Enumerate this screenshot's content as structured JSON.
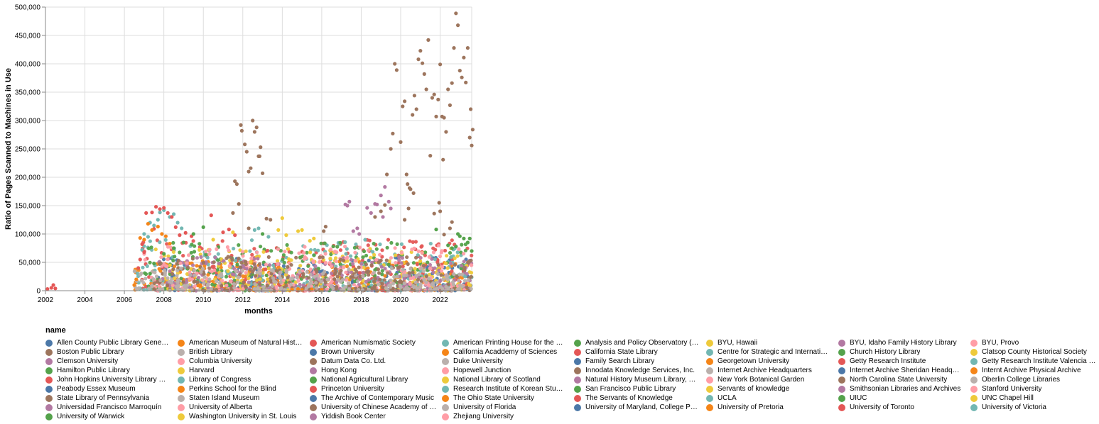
{
  "chart_data": {
    "type": "scatter",
    "xlabel": "months",
    "ylabel": "Ratio of Pages Scanned to Machines in Use",
    "xlim": [
      2002,
      2023.6
    ],
    "ylim": [
      0,
      500000
    ],
    "x_ticks": [
      "2002",
      "2004",
      "2006",
      "2008",
      "2010",
      "2012",
      "2014",
      "2016",
      "2018",
      "2020",
      "2022"
    ],
    "y_ticks": [
      "0",
      "50,000",
      "100,000",
      "150,000",
      "200,000",
      "250,000",
      "300,000",
      "350,000",
      "400,000",
      "450,000",
      "500,000"
    ],
    "grid": true,
    "legend_title": "name",
    "legend_position": "bottom",
    "legend": [
      {
        "name": "Allen County Public Library Gene…",
        "color": "#4c78a8"
      },
      {
        "name": "American Museum of Natural Hist…",
        "color": "#f58518"
      },
      {
        "name": "American Numismatic Society",
        "color": "#e45756"
      },
      {
        "name": "American Printing House for the …",
        "color": "#72b7b2"
      },
      {
        "name": "Analysis and Policy Observatory (…",
        "color": "#54a24b"
      },
      {
        "name": "BYU, Hawaii",
        "color": "#eeca3b"
      },
      {
        "name": "BYU, Idaho Family History Library",
        "color": "#b279a2"
      },
      {
        "name": "BYU, Provo",
        "color": "#ff9da6"
      },
      {
        "name": "Boston Public Library",
        "color": "#9d755d"
      },
      {
        "name": "British Library",
        "color": "#bab0ac"
      },
      {
        "name": "Brown University",
        "color": "#4c78a8"
      },
      {
        "name": "California Acaddemy of Sciences",
        "color": "#f58518"
      },
      {
        "name": "California State Library",
        "color": "#e45756"
      },
      {
        "name": "Centre for Strategic and Internati…",
        "color": "#72b7b2"
      },
      {
        "name": "Church History Library",
        "color": "#54a24b"
      },
      {
        "name": "Clatsop County Historical Society",
        "color": "#eeca3b"
      },
      {
        "name": "Clemson University",
        "color": "#b279a2"
      },
      {
        "name": "Columbia University",
        "color": "#ff9da6"
      },
      {
        "name": "Datum Data Co. Ltd.",
        "color": "#9d755d"
      },
      {
        "name": "Duke University",
        "color": "#bab0ac"
      },
      {
        "name": "Family Search Library",
        "color": "#4c78a8"
      },
      {
        "name": "Georgetown University",
        "color": "#f58518"
      },
      {
        "name": "Getty Research Institute",
        "color": "#e45756"
      },
      {
        "name": "Getty Research Institute Valencia …",
        "color": "#72b7b2"
      },
      {
        "name": "Hamilton Public Library",
        "color": "#54a24b"
      },
      {
        "name": "Harvard",
        "color": "#eeca3b"
      },
      {
        "name": "Hong Kong",
        "color": "#b279a2"
      },
      {
        "name": "Hopewell Junction",
        "color": "#ff9da6"
      },
      {
        "name": "Innodata Knowledge Services, Inc.",
        "color": "#9d755d"
      },
      {
        "name": "Internet Archive Headquarters",
        "color": "#bab0ac"
      },
      {
        "name": "Internet Archive Sheridan Headq…",
        "color": "#4c78a8"
      },
      {
        "name": "Internt Archive Physical Archive",
        "color": "#f58518"
      },
      {
        "name": "John Hopkins University Library …",
        "color": "#e45756"
      },
      {
        "name": "Library of Congress",
        "color": "#72b7b2"
      },
      {
        "name": "National Agricultural Library",
        "color": "#54a24b"
      },
      {
        "name": "National Library of Scotland",
        "color": "#eeca3b"
      },
      {
        "name": "Natural History Museum Library, …",
        "color": "#b279a2"
      },
      {
        "name": "New York Botanical Garden",
        "color": "#ff9da6"
      },
      {
        "name": "North Carolina State University",
        "color": "#9d755d"
      },
      {
        "name": "Oberlin College Libraries",
        "color": "#bab0ac"
      },
      {
        "name": "Peabody Essex Museum",
        "color": "#4c78a8"
      },
      {
        "name": "Perkins School for the Blind",
        "color": "#f58518"
      },
      {
        "name": "Princeton University",
        "color": "#e45756"
      },
      {
        "name": "Research Institute of Korean Stu…",
        "color": "#72b7b2"
      },
      {
        "name": "San Francisco Public Library",
        "color": "#54a24b"
      },
      {
        "name": "Servants of knowledge",
        "color": "#eeca3b"
      },
      {
        "name": "Smithsonian Libraries and Archives",
        "color": "#b279a2"
      },
      {
        "name": "Stanford University",
        "color": "#ff9da6"
      },
      {
        "name": "State Library of Pennsylvania",
        "color": "#9d755d"
      },
      {
        "name": "Staten Island Museum",
        "color": "#bab0ac"
      },
      {
        "name": "The Archive of Contemporary Music",
        "color": "#4c78a8"
      },
      {
        "name": "The Ohio State University",
        "color": "#f58518"
      },
      {
        "name": "The Servants of Knowledge",
        "color": "#e45756"
      },
      {
        "name": "UCLA",
        "color": "#72b7b2"
      },
      {
        "name": "UIUC",
        "color": "#54a24b"
      },
      {
        "name": "UNC Chapel Hill",
        "color": "#eeca3b"
      },
      {
        "name": "Universidad Francisco Marroquín",
        "color": "#b279a2"
      },
      {
        "name": "University of Alberta",
        "color": "#ff9da6"
      },
      {
        "name": "University of Chinese Academy of …",
        "color": "#9d755d"
      },
      {
        "name": "University of Florida",
        "color": "#bab0ac"
      },
      {
        "name": "University of Maryland, College P…",
        "color": "#4c78a8"
      },
      {
        "name": "University of Pretoria",
        "color": "#f58518"
      },
      {
        "name": "University of Toronto",
        "color": "#e45756"
      },
      {
        "name": "University of Victoria",
        "color": "#72b7b2"
      },
      {
        "name": "University of Warwick",
        "color": "#54a24b"
      },
      {
        "name": "Washington University in St. Louis",
        "color": "#eeca3b"
      },
      {
        "name": "Yiddish Book Center",
        "color": "#b279a2"
      },
      {
        "name": "Zhejiang University",
        "color": "#ff9da6"
      }
    ],
    "series": [
      {
        "name": "Boston Public Library",
        "color": "#9d755d",
        "points": [
          [
            2011.6,
            193000
          ],
          [
            2011.7,
            188000
          ],
          [
            2011.8,
            153000
          ],
          [
            2011.9,
            292000
          ],
          [
            2011.95,
            282000
          ],
          [
            2012.1,
            258000
          ],
          [
            2012.2,
            245000
          ],
          [
            2012.3,
            210000
          ],
          [
            2012.4,
            216000
          ],
          [
            2012.5,
            300000
          ],
          [
            2012.6,
            280000
          ],
          [
            2012.7,
            288000
          ],
          [
            2012.8,
            237000
          ],
          [
            2012.9,
            253000
          ],
          [
            2013.0,
            207000
          ],
          [
            2012.85,
            237000
          ],
          [
            2011.5,
            137000
          ],
          [
            2012.3,
            110000
          ],
          [
            2013.2,
            127000
          ],
          [
            2013.4,
            125000
          ],
          [
            2019.3,
            205000
          ],
          [
            2019.5,
            250000
          ],
          [
            2019.6,
            277000
          ],
          [
            2019.7,
            400000
          ],
          [
            2019.8,
            389000
          ],
          [
            2020.0,
            262000
          ],
          [
            2020.1,
            325000
          ],
          [
            2020.2,
            334000
          ],
          [
            2020.3,
            205000
          ],
          [
            2020.35,
            188000
          ],
          [
            2020.45,
            181000
          ],
          [
            2020.5,
            179000
          ],
          [
            2020.6,
            310000
          ],
          [
            2020.65,
            172000
          ],
          [
            2020.7,
            344000
          ],
          [
            2020.8,
            320000
          ],
          [
            2020.9,
            408000
          ],
          [
            2021.0,
            423000
          ],
          [
            2021.1,
            401000
          ],
          [
            2021.2,
            382000
          ],
          [
            2021.3,
            355000
          ],
          [
            2021.4,
            442000
          ],
          [
            2021.5,
            238000
          ],
          [
            2021.6,
            340000
          ],
          [
            2021.7,
            346000
          ],
          [
            2021.8,
            307000
          ],
          [
            2021.9,
            337000
          ],
          [
            2022.0,
            399000
          ],
          [
            2022.1,
            307000
          ],
          [
            2022.15,
            231000
          ],
          [
            2022.2,
            305000
          ],
          [
            2022.3,
            280000
          ],
          [
            2022.4,
            355000
          ],
          [
            2022.5,
            327000
          ],
          [
            2022.6,
            366000
          ],
          [
            2022.7,
            428000
          ],
          [
            2022.8,
            489000
          ],
          [
            2022.9,
            468000
          ],
          [
            2023.0,
            388000
          ],
          [
            2023.1,
            376000
          ],
          [
            2023.2,
            411000
          ],
          [
            2023.3,
            367000
          ],
          [
            2023.4,
            428000
          ],
          [
            2023.5,
            270000
          ],
          [
            2023.55,
            320000
          ],
          [
            2023.6,
            256000
          ],
          [
            2023.65,
            284000
          ],
          [
            2020.4,
            145000
          ],
          [
            2020.2,
            125000
          ],
          [
            2021.95,
            155000
          ],
          [
            2022.0,
            140000
          ],
          [
            2021.7,
            136000
          ],
          [
            2022.2,
            99000
          ],
          [
            2022.6,
            121000
          ],
          [
            2022.5,
            110000
          ],
          [
            2019.2,
            151000
          ],
          [
            2019.0,
            140000
          ],
          [
            2018.7,
            130000
          ],
          [
            2016.2,
            113000
          ],
          [
            2016.1,
            105000
          ]
        ]
      },
      {
        "name": "Smithsonian Libraries and Archives",
        "color": "#b279a2",
        "points": [
          [
            2017.2,
            152000
          ],
          [
            2017.3,
            150000
          ],
          [
            2017.4,
            157000
          ],
          [
            2017.6,
            105000
          ],
          [
            2017.8,
            110000
          ],
          [
            2018.3,
            146000
          ],
          [
            2018.5,
            137000
          ],
          [
            2018.7,
            153000
          ],
          [
            2018.8,
            152000
          ],
          [
            2019.0,
            168000
          ],
          [
            2019.2,
            183000
          ],
          [
            2019.4,
            157000
          ],
          [
            2019.5,
            145000
          ],
          [
            2019.1,
            130000
          ],
          [
            2017.9,
            100000
          ]
        ]
      },
      {
        "name": "Library of Congress",
        "color": "#72b7b2",
        "points": [
          [
            2007.0,
            100000
          ],
          [
            2007.3,
            120000
          ],
          [
            2007.5,
            115000
          ],
          [
            2007.7,
            125000
          ],
          [
            2007.8,
            138000
          ],
          [
            2008.0,
            142000
          ],
          [
            2008.3,
            130000
          ],
          [
            2008.5,
            135000
          ],
          [
            2008.7,
            120000
          ],
          [
            2007.2,
            95000
          ],
          [
            2006.9,
            72000
          ],
          [
            2008.9,
            110000
          ],
          [
            2012.6,
            107000
          ],
          [
            2012.8,
            110000
          ],
          [
            2013.3,
            95000
          ]
        ]
      },
      {
        "name": "American Numismatic Society",
        "color": "#e45756",
        "points": [
          [
            2006.7,
            40000
          ],
          [
            2006.8,
            55000
          ],
          [
            2007.0,
            68000
          ],
          [
            2007.1,
            137000
          ],
          [
            2007.4,
            138000
          ],
          [
            2007.6,
            148000
          ],
          [
            2007.8,
            144000
          ],
          [
            2008.0,
            146000
          ],
          [
            2008.2,
            137000
          ],
          [
            2008.4,
            130000
          ],
          [
            2008.6,
            112000
          ],
          [
            2008.8,
            98000
          ],
          [
            2009.1,
            102000
          ],
          [
            2009.4,
            96000
          ],
          [
            2010.4,
            133000
          ],
          [
            2011.0,
            103000
          ],
          [
            2011.3,
            108000
          ],
          [
            2011.6,
            98000
          ],
          [
            2006.9,
            82000
          ],
          [
            2007.5,
            109000
          ],
          [
            2002.1,
            3000
          ],
          [
            2002.3,
            5000
          ],
          [
            2002.4,
            10000
          ],
          [
            2002.5,
            4000
          ]
        ]
      },
      {
        "name": "American Museum of Natural Hist…",
        "color": "#f58518",
        "points": [
          [
            2006.5,
            10000
          ],
          [
            2006.6,
            20000
          ],
          [
            2006.8,
            93000
          ],
          [
            2007.0,
            90000
          ],
          [
            2007.2,
            118000
          ],
          [
            2007.4,
            107000
          ],
          [
            2007.7,
            113000
          ],
          [
            2007.9,
            100000
          ],
          [
            2008.1,
            96000
          ],
          [
            2008.3,
            83000
          ],
          [
            2014.5,
            2000
          ],
          [
            2015.0,
            1500
          ],
          [
            2015.5,
            2500
          ],
          [
            2016.0,
            1800
          ],
          [
            2014.8,
            3000
          ]
        ]
      },
      {
        "name": "Hamilton Public Library",
        "color": "#54a24b",
        "points": [
          [
            2007.3,
            30000
          ],
          [
            2007.5,
            48000
          ],
          [
            2008.0,
            65000
          ],
          [
            2008.5,
            75000
          ],
          [
            2009.0,
            85000
          ],
          [
            2009.5,
            100000
          ],
          [
            2010.0,
            112000
          ],
          [
            2013.0,
            100000
          ],
          [
            2021.8,
            108000
          ],
          [
            2022.8,
            78000
          ],
          [
            2022.9,
            100000
          ],
          [
            2023.0,
            96000
          ],
          [
            2023.2,
            92000
          ],
          [
            2023.4,
            85000
          ],
          [
            2023.5,
            92000
          ],
          [
            2023.6,
            70000
          ],
          [
            2022.6,
            75000
          ],
          [
            2022.4,
            80000
          ]
        ]
      },
      {
        "name": "Harvard",
        "color": "#eeca3b",
        "points": [
          [
            2013.8,
            107000
          ],
          [
            2014.0,
            128000
          ],
          [
            2014.2,
            98000
          ],
          [
            2014.8,
            105000
          ],
          [
            2015.0,
            107000
          ],
          [
            2015.4,
            88000
          ],
          [
            2015.6,
            92000
          ],
          [
            2011.5,
            103000
          ],
          [
            2010.5,
            90000
          ],
          [
            2009.8,
            72000
          ]
        ]
      }
    ],
    "cluster_bands": [
      {
        "color": "#4c78a8",
        "x0": 2007.5,
        "x1": 2023.6,
        "ymax": 60000
      },
      {
        "color": "#f58518",
        "x0": 2006.5,
        "x1": 2023.6,
        "ymax": 55000
      },
      {
        "color": "#e45756",
        "x0": 2006.6,
        "x1": 2023.6,
        "ymax": 90000
      },
      {
        "color": "#72b7b2",
        "x0": 2006.6,
        "x1": 2023.6,
        "ymax": 90000
      },
      {
        "color": "#54a24b",
        "x0": 2007.0,
        "x1": 2023.6,
        "ymax": 85000
      },
      {
        "color": "#eeca3b",
        "x0": 2007.5,
        "x1": 2023.6,
        "ymax": 75000
      },
      {
        "color": "#b279a2",
        "x0": 2007.5,
        "x1": 2023.6,
        "ymax": 60000
      },
      {
        "color": "#ff9da6",
        "x0": 2007.0,
        "x1": 2023.6,
        "ymax": 80000
      },
      {
        "color": "#9d755d",
        "x0": 2007.5,
        "x1": 2023.6,
        "ymax": 60000
      },
      {
        "color": "#bab0ac",
        "x0": 2006.5,
        "x1": 2023.6,
        "ymax": 40000
      }
    ]
  }
}
